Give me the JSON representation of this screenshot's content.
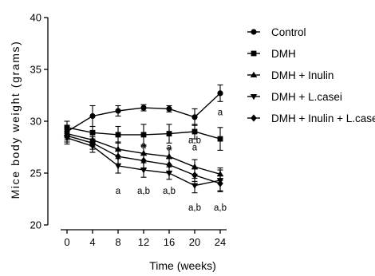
{
  "chart_data": {
    "type": "line",
    "xlabel": "Time (weeks)",
    "ylabel": "Mice body weight (grams)",
    "x": [
      0,
      4,
      8,
      12,
      16,
      20,
      24
    ],
    "xlim": [
      -3,
      27
    ],
    "ylim": [
      20,
      40
    ],
    "yticks": [
      20,
      25,
      30,
      35,
      40
    ],
    "grid": false,
    "legend_position": "right",
    "series": [
      {
        "name": "Control",
        "marker": "circle",
        "values": [
          29.0,
          30.5,
          31.0,
          31.3,
          31.2,
          30.4,
          32.7
        ],
        "errors": [
          0.6,
          1.0,
          0.5,
          0.3,
          0.3,
          0.8,
          0.8
        ]
      },
      {
        "name": "DMH",
        "marker": "square",
        "values": [
          29.4,
          28.9,
          28.7,
          28.7,
          28.8,
          29.0,
          28.3
        ],
        "errors": [
          0.6,
          0.6,
          0.8,
          1.0,
          0.9,
          0.7,
          1.1
        ]
      },
      {
        "name": "DMH + Inulin",
        "marker": "triangle-up",
        "values": [
          28.8,
          28.2,
          27.3,
          26.9,
          26.6,
          25.6,
          24.9
        ],
        "errors": [
          0.6,
          0.6,
          0.7,
          0.7,
          0.8,
          0.7,
          0.6
        ]
      },
      {
        "name": "DMH + L.casei",
        "marker": "triangle-down",
        "values": [
          28.4,
          27.6,
          25.7,
          25.3,
          25.0,
          23.8,
          24.3
        ],
        "errors": [
          0.6,
          0.6,
          0.7,
          0.7,
          0.6,
          0.7,
          1.0
        ]
      },
      {
        "name": "DMH + Inulin + L.casei",
        "marker": "diamond",
        "values": [
          28.6,
          27.9,
          26.6,
          26.2,
          25.8,
          24.8,
          24.0
        ],
        "errors": [
          0.6,
          0.6,
          0.7,
          0.7,
          0.6,
          0.6,
          0.8
        ]
      }
    ],
    "annotations": [
      {
        "text": "a",
        "x": 24,
        "y": 30.9
      },
      {
        "text": "a",
        "x": 12,
        "y": 27.7
      },
      {
        "text": "a",
        "x": 16,
        "y": 27.5
      },
      {
        "text": "a",
        "x": 20,
        "y": 27.5
      },
      {
        "text": "a,b",
        "x": 20,
        "y": 28.2
      },
      {
        "text": "a",
        "x": 8,
        "y": 23.3
      },
      {
        "text": "a,b",
        "x": 12,
        "y": 23.3
      },
      {
        "text": "a,b",
        "x": 16,
        "y": 23.3
      },
      {
        "text": "a,b",
        "x": 20,
        "y": 21.7
      },
      {
        "text": "a,b",
        "x": 24,
        "y": 21.7
      }
    ]
  }
}
